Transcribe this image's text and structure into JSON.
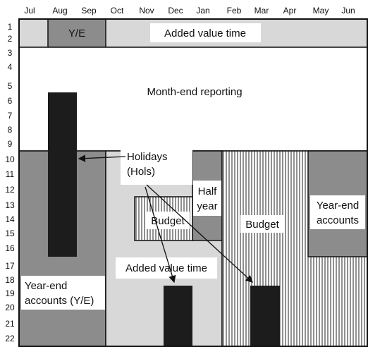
{
  "months": [
    "Jul",
    "Aug",
    "Sep",
    "Oct",
    "Nov",
    "Dec",
    "Jan",
    "Feb",
    "Mar",
    "Apr",
    "May",
    "Jun"
  ],
  "rows": [
    "1",
    "2",
    "3",
    "4",
    "5",
    "6",
    "7",
    "8",
    "9",
    "10",
    "11",
    "12",
    "13",
    "14",
    "15",
    "16",
    "17",
    "18",
    "19",
    "20",
    "21",
    "22"
  ],
  "labels": {
    "ye_top": "Y/E",
    "added_value_top": "Added value time",
    "month_end": "Month-end reporting",
    "holidays_line1": "Holidays",
    "holidays_line2": "(Hols)",
    "half_year_line1": "Half",
    "half_year_line2": "year",
    "budget_small": "Budget",
    "budget_large": "Budget",
    "year_end_right_line1": "Year-end",
    "year_end_right_line2": "accounts",
    "added_value_mid": "Added value time",
    "year_end_left_line1": "Year-end",
    "year_end_left_line2": "accounts (Y/E)"
  },
  "colors": {
    "dark_gray": "#8c8c8c",
    "light_gray": "#d8d8d8",
    "black": "#1c1c1c",
    "white": "#ffffff"
  }
}
